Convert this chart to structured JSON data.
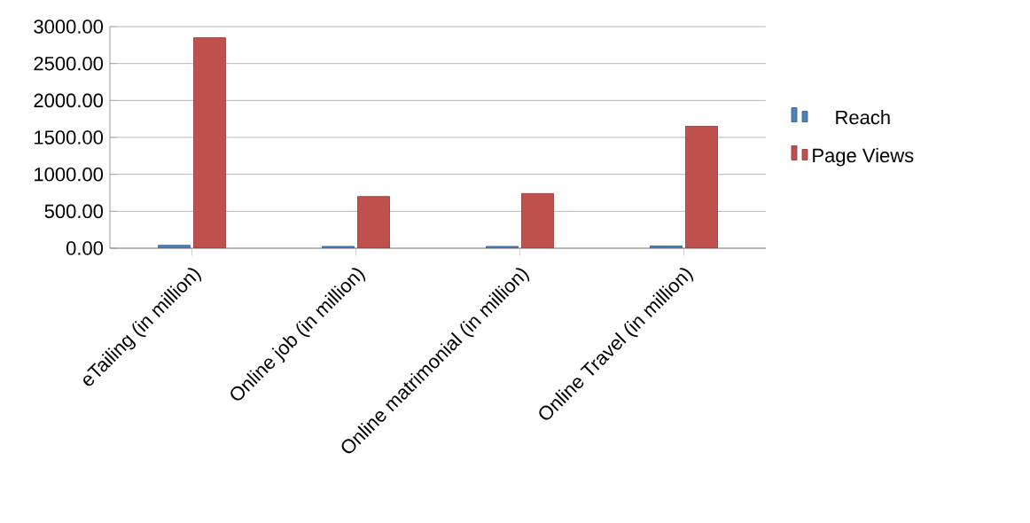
{
  "chart_data": {
    "type": "bar",
    "categories": [
      "eTailing (in million)",
      "Online job (in million)",
      "Online matrimonial (in million)",
      "Online Travel (in million)"
    ],
    "series": [
      {
        "name": "Reach",
        "color": "#4f81bd",
        "values": [
          40,
          25,
          25,
          30
        ]
      },
      {
        "name": "Page Views",
        "color": "#c0504d",
        "values": [
          2850,
          700,
          740,
          1650
        ]
      }
    ],
    "ylim": [
      0,
      3000
    ],
    "yticks": [
      {
        "value": 0,
        "label": "0.00"
      },
      {
        "value": 500,
        "label": "500.00"
      },
      {
        "value": 1000,
        "label": "1000.00"
      },
      {
        "value": 1500,
        "label": "1500.00"
      },
      {
        "value": 2000,
        "label": "2000.00"
      },
      {
        "value": 2500,
        "label": "2500.00"
      },
      {
        "value": 3000,
        "label": "3000.00"
      }
    ],
    "grid": "y",
    "legend": "right"
  }
}
